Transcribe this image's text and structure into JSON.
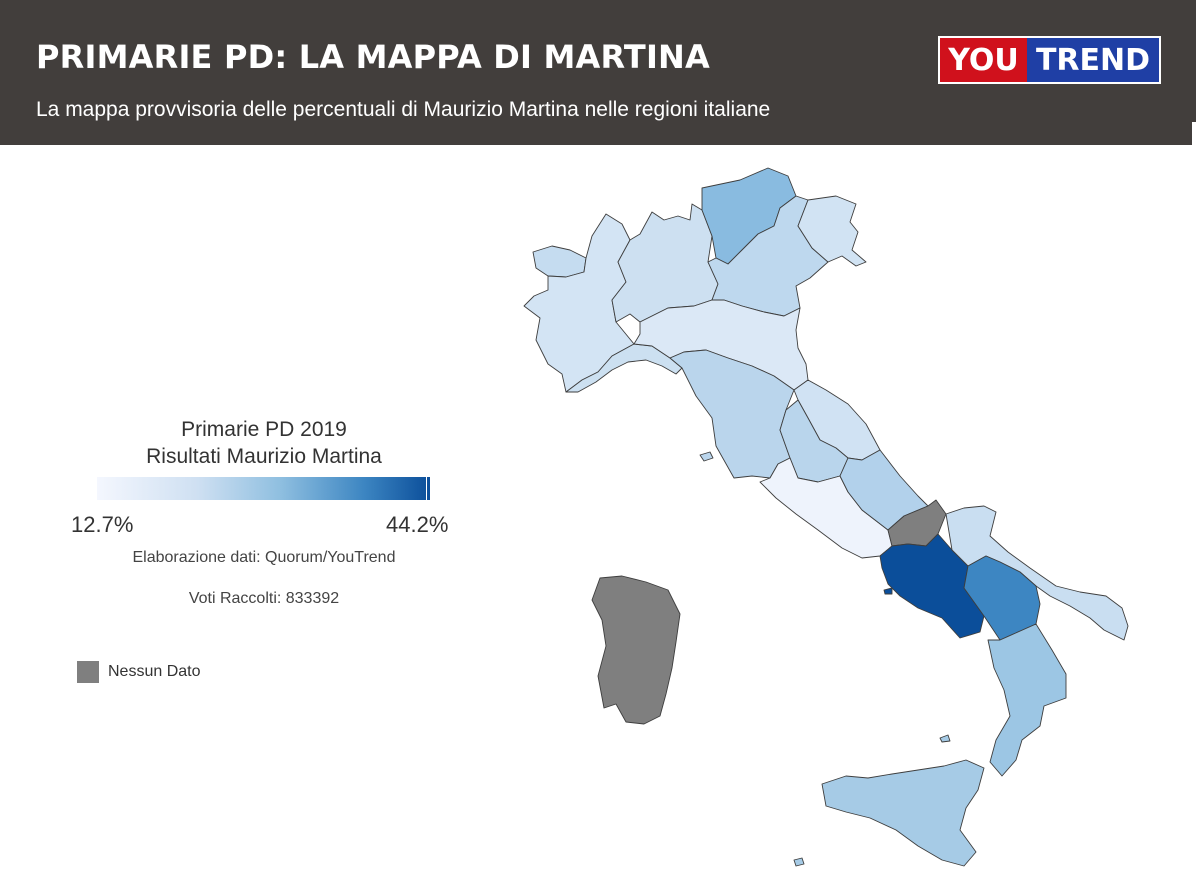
{
  "header": {
    "title": "PRIMARIE PD: LA MAPPA DI MARTINA",
    "subtitle": "La mappa provvisoria delle percentuali di Maurizio Martina nelle regioni italiane",
    "logo": {
      "part1": "YOU",
      "part2": "TREND",
      "part1_color": "#d0111c",
      "part2_color": "#1f3fa5"
    }
  },
  "legend": {
    "title_line1": "Primarie PD 2019",
    "title_line2": "Risultati Maurizio Martina",
    "min_label": "12.7%",
    "max_label": "44.2%",
    "min_color": "#f4f7fe",
    "max_color": "#0b4e9a",
    "credit": "Elaborazione dati: Quorum/YouTrend",
    "votes": "Voti Raccolti: 833392",
    "no_data_label": "Nessun Dato",
    "no_data_color": "#7f7f7f"
  },
  "map": {
    "regions": [
      {
        "name": "Valle d'Aosta",
        "fill": "#c5dcf0"
      },
      {
        "name": "Piemonte",
        "fill": "#d3e4f4"
      },
      {
        "name": "Lombardia",
        "fill": "#cde0f1"
      },
      {
        "name": "Trentino-Alto Adige",
        "fill": "#89bbe0"
      },
      {
        "name": "Veneto",
        "fill": "#bed8ee"
      },
      {
        "name": "Friuli-Venezia Giulia",
        "fill": "#d1e3f3"
      },
      {
        "name": "Liguria",
        "fill": "#cce0f1"
      },
      {
        "name": "Emilia-Romagna",
        "fill": "#dbe8f6"
      },
      {
        "name": "Toscana",
        "fill": "#bad5ec"
      },
      {
        "name": "Marche",
        "fill": "#d0e2f3"
      },
      {
        "name": "Umbria",
        "fill": "#b9d5ec"
      },
      {
        "name": "Lazio",
        "fill": "#eef3fc"
      },
      {
        "name": "Abruzzo",
        "fill": "#b2d1eb"
      },
      {
        "name": "Molise",
        "fill": "#7f7f7f"
      },
      {
        "name": "Campania",
        "fill": "#0b4e9a"
      },
      {
        "name": "Puglia",
        "fill": "#c9def1"
      },
      {
        "name": "Basilicata",
        "fill": "#3d86c2"
      },
      {
        "name": "Calabria",
        "fill": "#9cc6e4"
      },
      {
        "name": "Sicilia",
        "fill": "#a6cbe6"
      },
      {
        "name": "Sardegna",
        "fill": "#7f7f7f"
      }
    ]
  }
}
